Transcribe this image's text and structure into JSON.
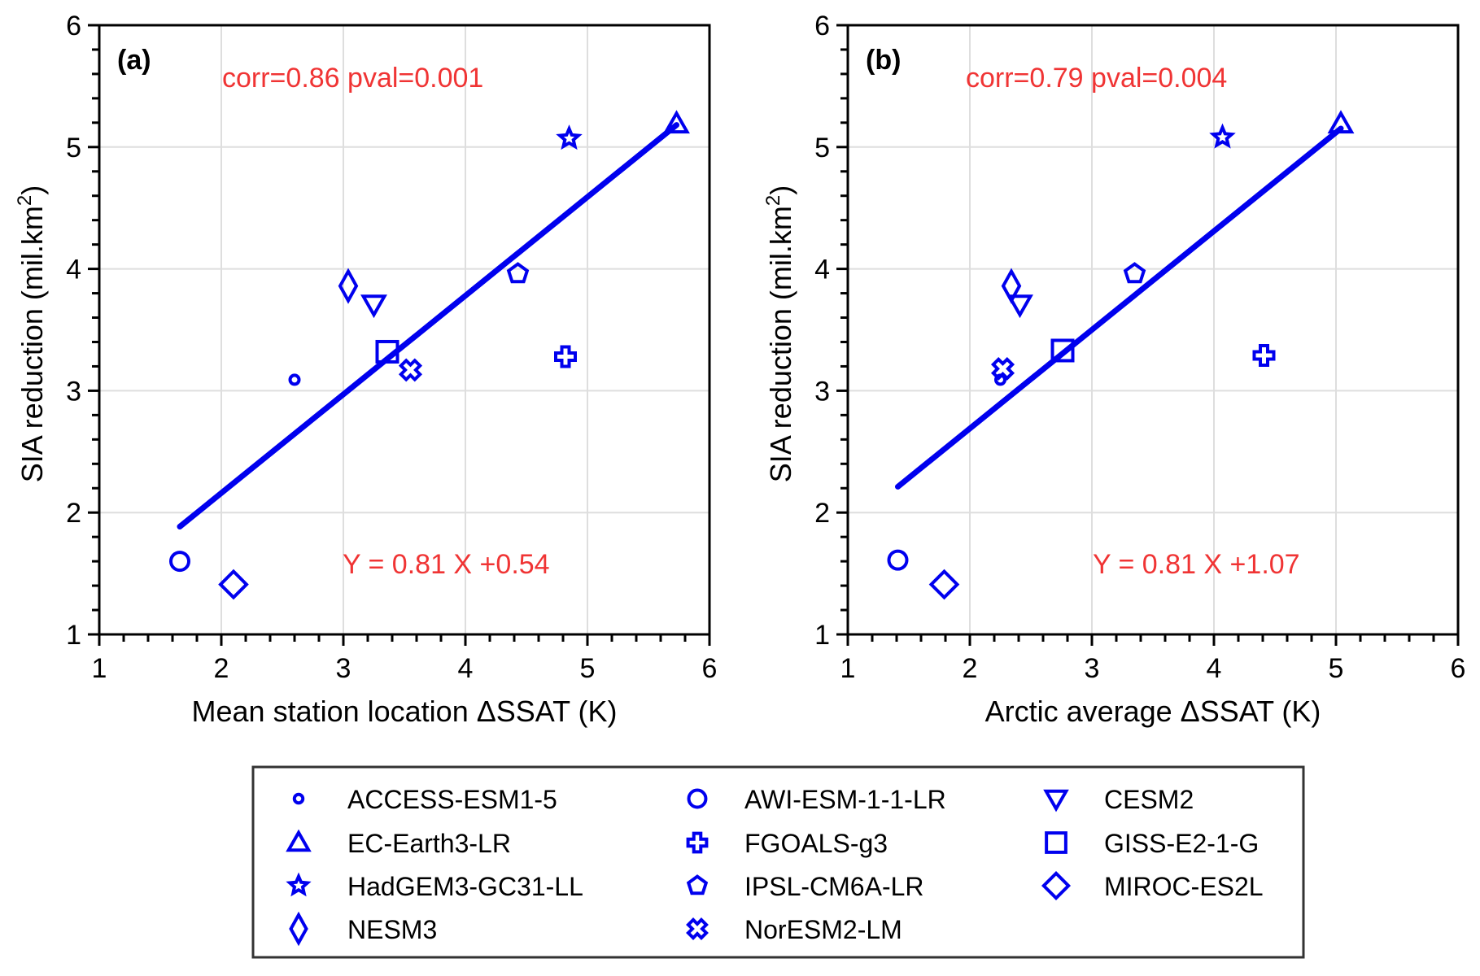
{
  "colors": {
    "marker": "#0000ee",
    "fit_line": "#0000ee",
    "stat_text": "#f03434",
    "grid": "#dedede",
    "axis": "#000000"
  },
  "chart_data": [
    {
      "panel": "a",
      "type": "scatter",
      "panel_label": "(a)",
      "xlabel": "Mean station location ΔSSAT (K)",
      "ylabel": "SIA reduction (mil.km²)",
      "ylabel_base": "SIA reduction (mil.km",
      "ylabel_sup": "2",
      "ylabel_end": ")",
      "xlim": [
        1,
        6
      ],
      "ylim": [
        1,
        6
      ],
      "xticks": [
        "1",
        "2",
        "3",
        "4",
        "5",
        "6"
      ],
      "yticks": [
        "1",
        "2",
        "3",
        "4",
        "5",
        "6"
      ],
      "grid": true,
      "annotations": {
        "corr": "corr=0.86  pval=0.001",
        "equation": "Y = 0.81 X +0.54"
      },
      "fit": {
        "slope": 0.81,
        "intercept": 0.54,
        "x_range": [
          1.66,
          5.73
        ]
      },
      "points": [
        {
          "model": "ACCESS-ESM1-5",
          "marker": "small-circle",
          "x": 2.6,
          "y": 3.09
        },
        {
          "model": "AWI-ESM-1-1-LR",
          "marker": "circle",
          "x": 1.66,
          "y": 1.6
        },
        {
          "model": "CESM2",
          "marker": "triangle-down",
          "x": 3.25,
          "y": 3.71
        },
        {
          "model": "EC-Earth3-LR",
          "marker": "triangle-up",
          "x": 5.73,
          "y": 5.19
        },
        {
          "model": "FGOALS-g3",
          "marker": "plus",
          "x": 4.82,
          "y": 3.28
        },
        {
          "model": "GISS-E2-1-G",
          "marker": "square",
          "x": 3.36,
          "y": 3.32
        },
        {
          "model": "HadGEM3-GC31-LL",
          "marker": "star",
          "x": 4.85,
          "y": 5.07
        },
        {
          "model": "IPSL-CM6A-LR",
          "marker": "pentagon",
          "x": 4.43,
          "y": 3.96
        },
        {
          "model": "MIROC-ES2L",
          "marker": "diamond",
          "x": 2.1,
          "y": 1.41
        },
        {
          "model": "NESM3",
          "marker": "thin-diamond",
          "x": 3.04,
          "y": 3.86
        },
        {
          "model": "NorESM2-LM",
          "marker": "cross",
          "x": 3.55,
          "y": 3.17
        }
      ]
    },
    {
      "panel": "b",
      "type": "scatter",
      "panel_label": "(b)",
      "xlabel": "Arctic average ΔSSAT (K)",
      "ylabel": "SIA reduction (mil.km²)",
      "ylabel_base": "SIA reduction (mil.km",
      "ylabel_sup": "2",
      "ylabel_end": ")",
      "xlim": [
        1,
        6
      ],
      "ylim": [
        1,
        6
      ],
      "xticks": [
        "1",
        "2",
        "3",
        "4",
        "5",
        "6"
      ],
      "yticks": [
        "1",
        "2",
        "3",
        "4",
        "5",
        "6"
      ],
      "grid": true,
      "annotations": {
        "corr": "corr=0.79 pval=0.004",
        "equation": "Y = 0.81 X +1.07"
      },
      "fit": {
        "slope": 0.81,
        "intercept": 1.07,
        "x_range": [
          1.41,
          5.04
        ]
      },
      "points": [
        {
          "model": "ACCESS-ESM1-5",
          "marker": "small-circle",
          "x": 2.25,
          "y": 3.09
        },
        {
          "model": "AWI-ESM-1-1-LR",
          "marker": "circle",
          "x": 1.41,
          "y": 1.61
        },
        {
          "model": "CESM2",
          "marker": "triangle-down",
          "x": 2.41,
          "y": 3.71
        },
        {
          "model": "EC-Earth3-LR",
          "marker": "triangle-up",
          "x": 5.04,
          "y": 5.19
        },
        {
          "model": "FGOALS-g3",
          "marker": "plus",
          "x": 4.41,
          "y": 3.29
        },
        {
          "model": "GISS-E2-1-G",
          "marker": "square",
          "x": 2.76,
          "y": 3.33
        },
        {
          "model": "HadGEM3-GC31-LL",
          "marker": "star",
          "x": 4.07,
          "y": 5.08
        },
        {
          "model": "IPSL-CM6A-LR",
          "marker": "pentagon",
          "x": 3.35,
          "y": 3.96
        },
        {
          "model": "MIROC-ES2L",
          "marker": "diamond",
          "x": 1.79,
          "y": 1.41
        },
        {
          "model": "NESM3",
          "marker": "thin-diamond",
          "x": 2.34,
          "y": 3.86
        },
        {
          "model": "NorESM2-LM",
          "marker": "cross",
          "x": 2.27,
          "y": 3.18
        }
      ]
    }
  ],
  "legend": {
    "placement": "bottom-center",
    "columns": 3,
    "items": [
      {
        "label": "ACCESS-ESM1-5",
        "marker": "small-circle"
      },
      {
        "label": "AWI-ESM-1-1-LR",
        "marker": "circle"
      },
      {
        "label": "CESM2",
        "marker": "triangle-down"
      },
      {
        "label": "EC-Earth3-LR",
        "marker": "triangle-up"
      },
      {
        "label": "FGOALS-g3",
        "marker": "plus"
      },
      {
        "label": "GISS-E2-1-G",
        "marker": "square"
      },
      {
        "label": "HadGEM3-GC31-LL",
        "marker": "star"
      },
      {
        "label": "IPSL-CM6A-LR",
        "marker": "pentagon"
      },
      {
        "label": "MIROC-ES2L",
        "marker": "diamond"
      },
      {
        "label": "NESM3",
        "marker": "thin-diamond"
      },
      {
        "label": "NorESM2-LM",
        "marker": "cross"
      }
    ]
  }
}
